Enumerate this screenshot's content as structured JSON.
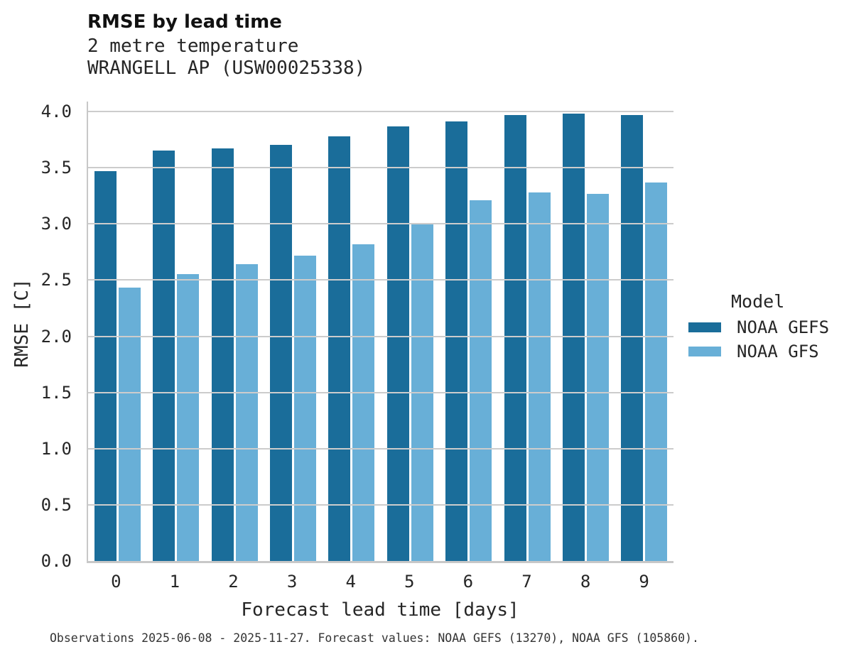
{
  "colors": {
    "series_dark_blue": "#1a6d9a",
    "series_light_blue": "#68afd7",
    "gridline": "#cccccc",
    "axis_line": "#c8c8c8",
    "text": "#262626"
  },
  "chart_data": {
    "type": "bar",
    "title": "RMSE by lead time",
    "subtitle_lines": [
      "2 metre temperature",
      "WRANGELL AP (USW00025338)"
    ],
    "xlabel": "Forecast lead time [days]",
    "ylabel": "RMSE [C]",
    "categories": [
      "0",
      "1",
      "2",
      "3",
      "4",
      "5",
      "6",
      "7",
      "8",
      "9"
    ],
    "series": [
      {
        "name": "NOAA GEFS",
        "color": "#1a6d9a",
        "values": [
          3.47,
          3.65,
          3.67,
          3.7,
          3.78,
          3.87,
          3.91,
          3.97,
          3.98,
          3.97
        ]
      },
      {
        "name": "NOAA GFS",
        "color": "#68afd7",
        "values": [
          2.43,
          2.55,
          2.64,
          2.72,
          2.82,
          3.01,
          3.21,
          3.28,
          3.27,
          3.37
        ]
      }
    ],
    "ylim": [
      0,
      4.09
    ],
    "yticks": [
      0.0,
      0.5,
      1.0,
      1.5,
      2.0,
      2.5,
      3.0,
      3.5,
      4.0
    ],
    "ytick_labels": [
      "0.0",
      "0.5",
      "1.0",
      "1.5",
      "2.0",
      "2.5",
      "3.0",
      "3.5",
      "4.0"
    ],
    "grid": true,
    "legend": {
      "title": "Model",
      "position": "right"
    },
    "caption": "Observations 2025-06-08 - 2025-11-27. Forecast values: NOAA GEFS (13270), NOAA GFS (105860)."
  }
}
